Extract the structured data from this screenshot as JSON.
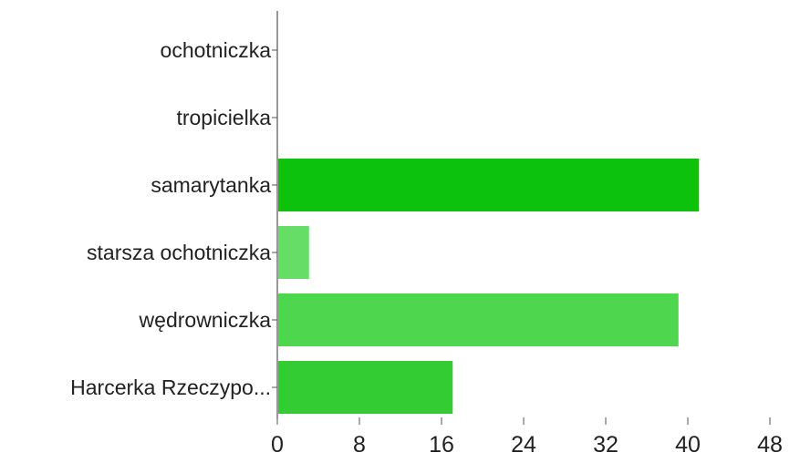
{
  "chart_data": {
    "type": "bar",
    "orientation": "horizontal",
    "categories": [
      "ochotniczka",
      "tropicielka",
      "samarytanka",
      "starsza ochotniczka",
      "wędrowniczka",
      "Harcerka Rzeczypo..."
    ],
    "values": [
      0,
      0,
      41,
      3,
      39,
      17
    ],
    "colors": [
      "#66dd66",
      "#66dd66",
      "#0dc20d",
      "#66dd66",
      "#4fd64f",
      "#33cc33"
    ],
    "xlim": [
      0,
      48
    ],
    "xticks": [
      "0",
      "8",
      "16",
      "24",
      "32",
      "40",
      "48"
    ],
    "grid": false,
    "title": "",
    "xlabel": "",
    "ylabel": ""
  }
}
